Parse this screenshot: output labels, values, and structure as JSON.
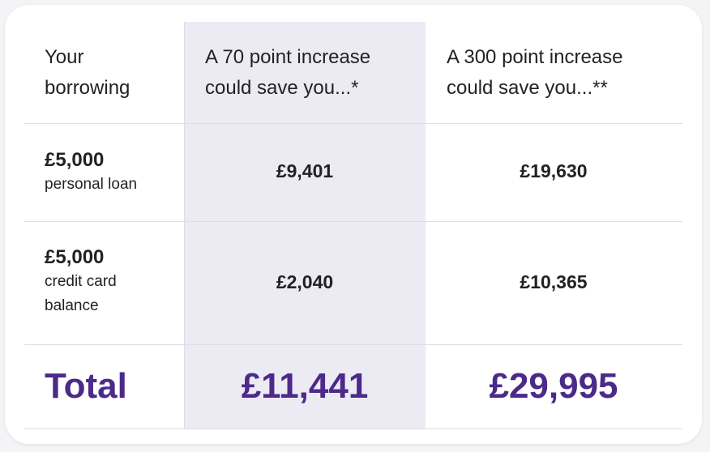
{
  "headers": {
    "col1": "Your borrowing",
    "col2": "A 70 point increase could save you...*",
    "col3": "A 300 point increase could save you...**"
  },
  "rows": [
    {
      "amount": "£5,000",
      "type": "personal loan",
      "save70": "£9,401",
      "save300": "£19,630"
    },
    {
      "amount": "£5,000",
      "type": "credit card balance",
      "save70": "£2,040",
      "save300": "£10,365"
    }
  ],
  "total": {
    "label": "Total",
    "save70": "£11,441",
    "save300": "£29,995"
  },
  "colors": {
    "accent": "#4b2a8a",
    "highlight_column": "#ecebf4"
  }
}
